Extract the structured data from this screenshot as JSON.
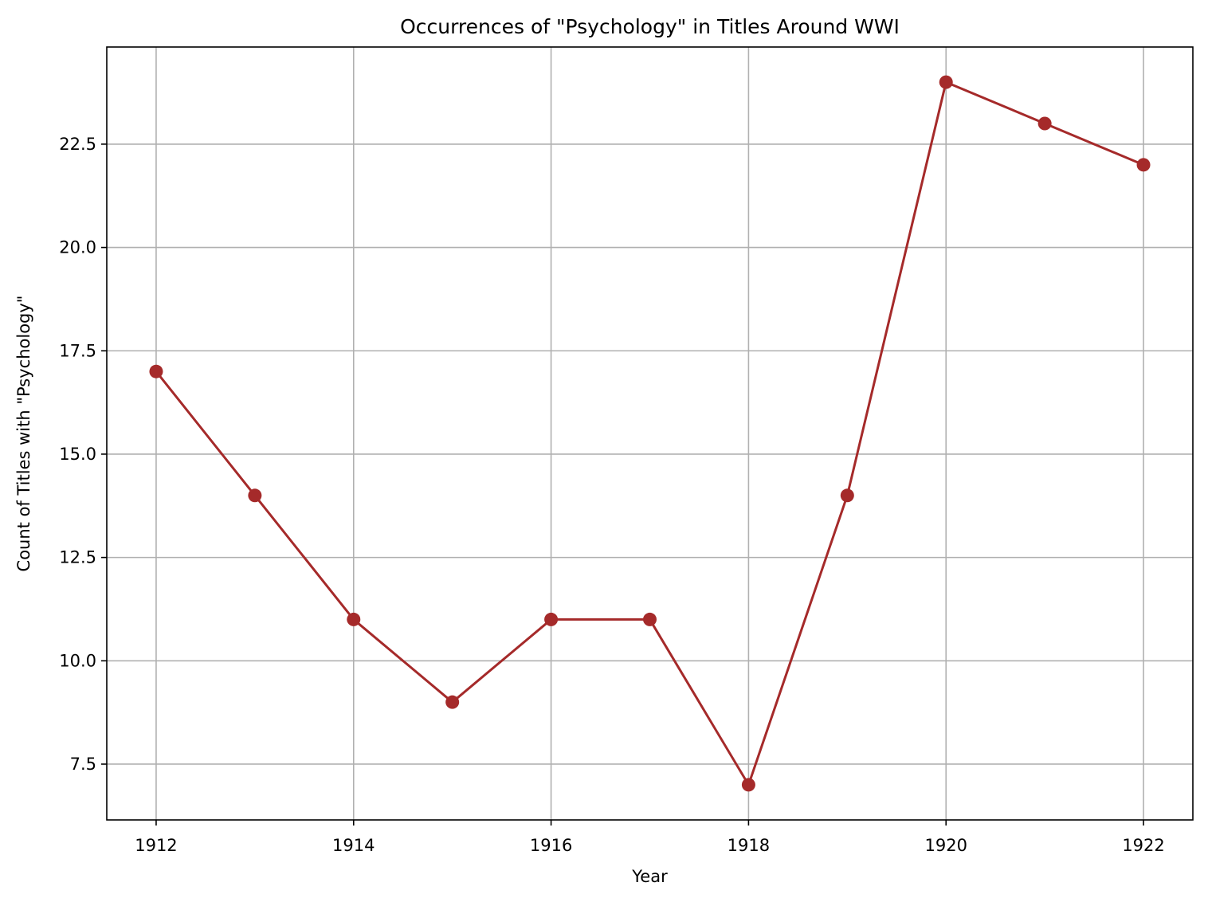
{
  "chart_data": {
    "type": "line",
    "title": "Occurrences of \"Psychology\" in Titles Around WWI",
    "xlabel": "Year",
    "ylabel": "Count of Titles with \"Psychology\"",
    "x": [
      1912,
      1913,
      1914,
      1915,
      1916,
      1917,
      1918,
      1919,
      1920,
      1921,
      1922
    ],
    "series": [
      {
        "values": [
          17,
          14,
          11,
          9,
          11,
          11,
          7,
          14,
          24,
          23,
          22
        ],
        "color": "#a52a2a",
        "marker": "circle"
      }
    ],
    "xticks": [
      "1912",
      "1914",
      "1916",
      "1918",
      "1920",
      "1922"
    ],
    "yticks": [
      "7.5",
      "10.0",
      "12.5",
      "15.0",
      "17.5",
      "20.0",
      "22.5"
    ],
    "xlim": [
      1911.5,
      1922.5
    ],
    "ylim": [
      6.15,
      24.85
    ],
    "grid": true,
    "legend": "none"
  }
}
